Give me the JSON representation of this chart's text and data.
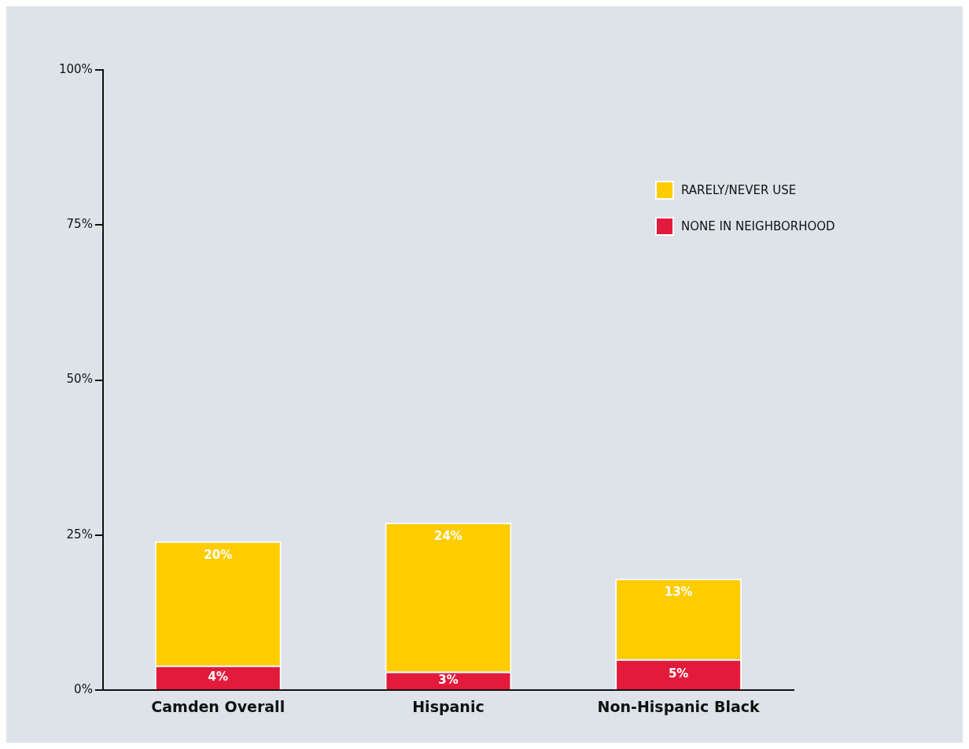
{
  "chart_data": {
    "type": "bar",
    "stacked": true,
    "categories": [
      "Camden Overall",
      "Hispanic",
      "Non-Hispanic Black"
    ],
    "series": [
      {
        "name": "NONE IN NEIGHBORHOOD",
        "color": "#e31b3b",
        "values": [
          4,
          3,
          5
        ],
        "value_labels": [
          "4%",
          "3%",
          "5%"
        ]
      },
      {
        "name": "RARELY/NEVER USE",
        "color": "#ffcc00",
        "values": [
          20,
          24,
          13
        ],
        "value_labels": [
          "20%",
          "24%",
          "13%"
        ]
      }
    ],
    "ylim": [
      0,
      100
    ],
    "yticks": [
      {
        "value": 0,
        "label": "0%"
      },
      {
        "value": 25,
        "label": "25%"
      },
      {
        "value": 50,
        "label": "50%"
      },
      {
        "value": 75,
        "label": "75%"
      },
      {
        "value": 100,
        "label": "100%"
      }
    ],
    "legend": "top right",
    "grid": false
  }
}
